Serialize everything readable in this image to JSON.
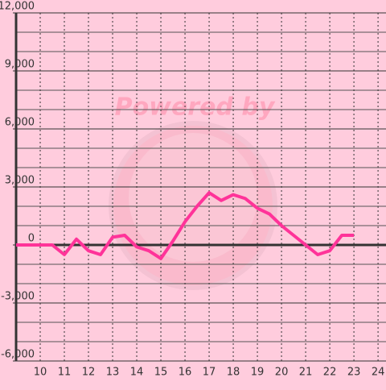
{
  "chart_data": {
    "type": "line",
    "watermark": "Powered by",
    "x": [
      9,
      9.5,
      10,
      10.5,
      11,
      11.5,
      12,
      12.5,
      13,
      13.5,
      14,
      14.5,
      15,
      15.5,
      16,
      16.5,
      17,
      17.5,
      18,
      18.5,
      19,
      19.5,
      20,
      20.5,
      21,
      21.5,
      22,
      22.5,
      23
    ],
    "series": [
      {
        "color": "#ff3399",
        "values": [
          0,
          0,
          0,
          0,
          -500,
          300,
          -300,
          -500,
          400,
          500,
          -100,
          -300,
          -700,
          200,
          1200,
          2000,
          2700,
          2300,
          2600,
          2400,
          1900,
          1600,
          1000,
          500,
          0,
          -500,
          -300,
          500,
          500
        ]
      }
    ],
    "xlim": [
      9,
      24.33
    ],
    "ylim": [
      -6000,
      12000
    ],
    "xticks": [
      10,
      11,
      12,
      13,
      14,
      15,
      16,
      17,
      18,
      19,
      20,
      21,
      22,
      23,
      24
    ],
    "yticks": [
      {
        "value": -6000,
        "label": "-6,000"
      },
      {
        "value": -3000,
        "label": "-3,000"
      },
      0,
      {
        "value": 3000,
        "label": "3,000"
      },
      {
        "value": 6000,
        "label": "6,000"
      },
      {
        "value": 9000,
        "label": "9,000"
      },
      {
        "value": 12000,
        "label": "12,000"
      }
    ],
    "yminorticks": [
      -5000,
      -4000,
      -2000,
      -1000,
      1000,
      2000,
      4000,
      5000,
      7000,
      8000,
      10000,
      11000
    ],
    "grid": true
  }
}
